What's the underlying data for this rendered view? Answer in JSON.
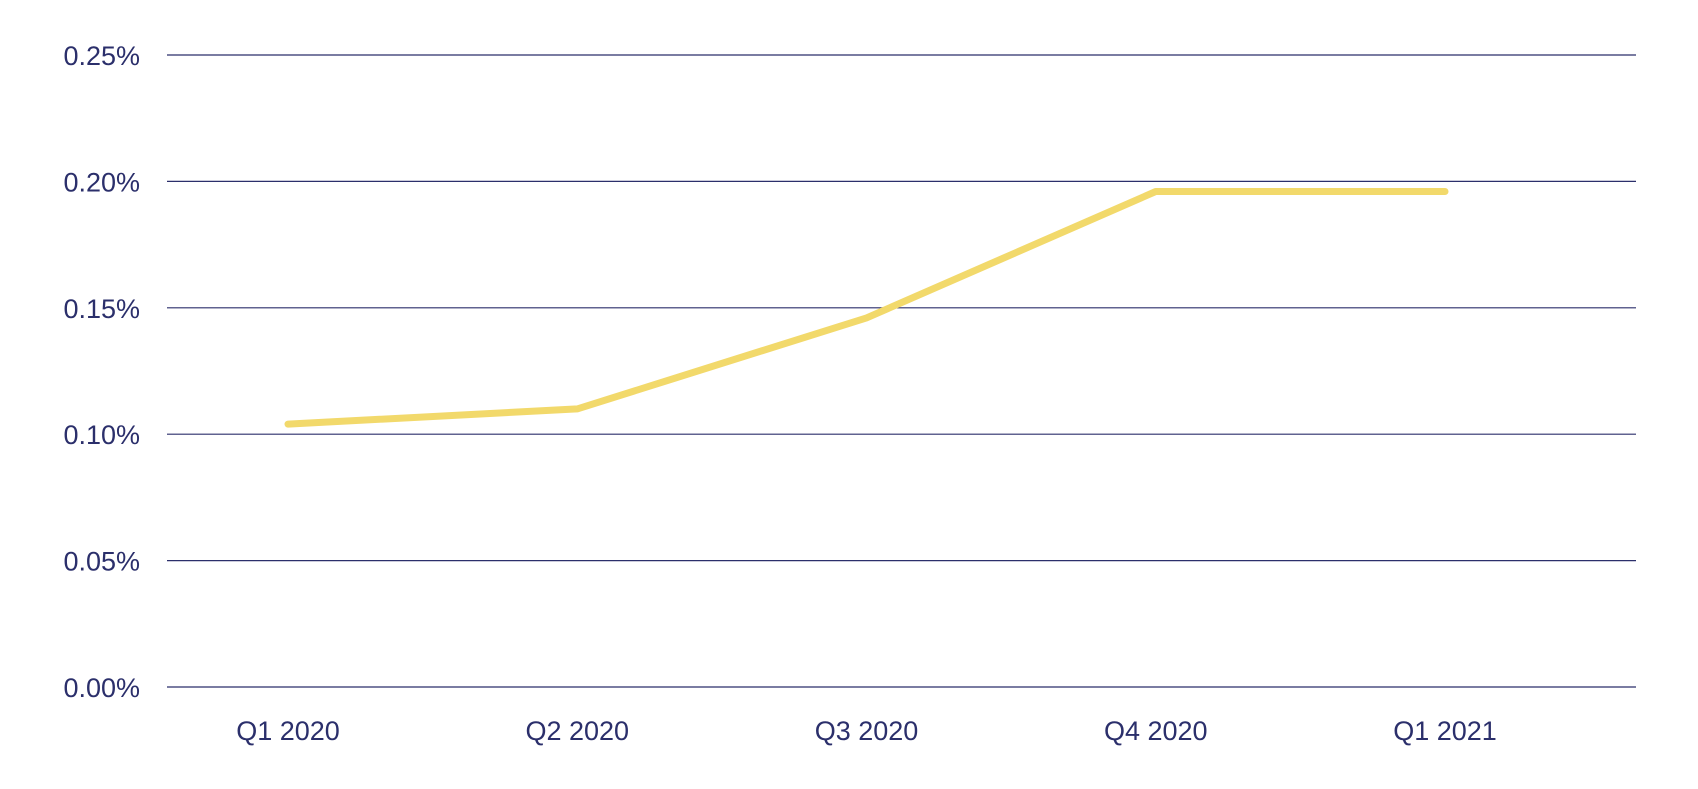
{
  "chart_data": {
    "type": "line",
    "title": "",
    "xlabel": "",
    "ylabel": "",
    "categories": [
      "Q1 2020",
      "Q2 2020",
      "Q3 2020",
      "Q4 2020",
      "Q1 2021"
    ],
    "series": [
      {
        "values": [
          0.104,
          0.11,
          0.146,
          0.196,
          0.196
        ],
        "color": "#f2d96b"
      }
    ],
    "ylim": [
      0,
      0.25
    ],
    "yticks": [
      0,
      0.05,
      0.1,
      0.15,
      0.2,
      0.25
    ],
    "ytick_labels": [
      "0.00%",
      "0.05%",
      "0.10%",
      "0.15%",
      "0.20%",
      "0.25%"
    ],
    "grid": true,
    "legend": "none",
    "colors": {
      "grid": "#2b2f6b",
      "text": "#2b2f6b",
      "line": "#f2d96b"
    }
  }
}
